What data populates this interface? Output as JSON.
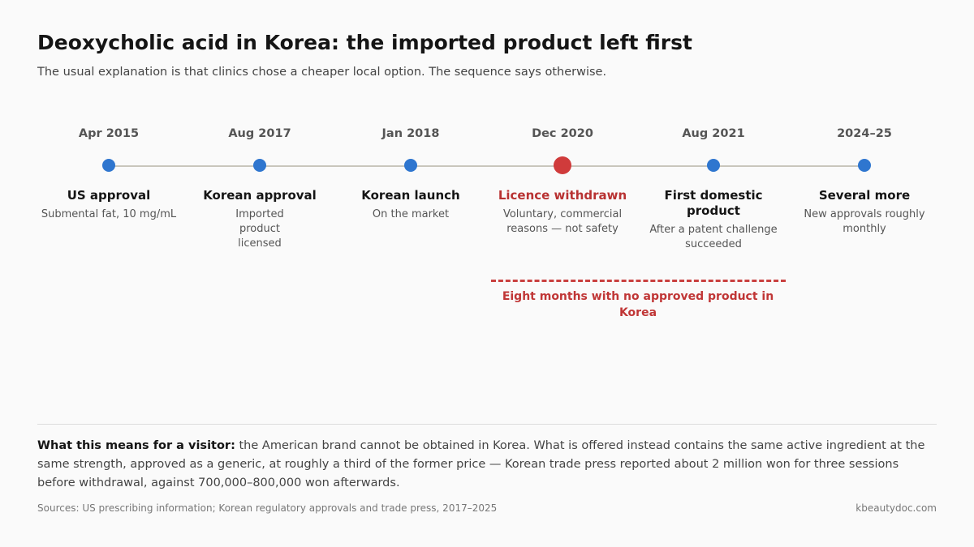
{
  "header": {
    "title": "Deoxycholic acid in Korea: the imported product left first",
    "subtitle": "The usual explanation is that clinics chose a cheaper local option. The sequence says otherwise."
  },
  "timeline": {
    "events": [
      {
        "date": "Apr 2015",
        "label": "US approval",
        "description": "Submental fat, 10 mg/mL",
        "highlight": false
      },
      {
        "date": "Aug 2017",
        "label": "Korean approval",
        "description": "Imported product licensed",
        "highlight": false
      },
      {
        "date": "Jan 2018",
        "label": "Korean launch",
        "description": "On the market",
        "highlight": false
      },
      {
        "date": "Dec 2020",
        "label": "Licence withdrawn",
        "description": "Voluntary, commercial reasons — not safety",
        "highlight": true
      },
      {
        "date": "Aug 2021",
        "label": "First domestic product",
        "description": "After a patent challenge succeeded",
        "highlight": false
      },
      {
        "date": "2024–25",
        "label": "Several more",
        "description": "New approvals roughly monthly",
        "highlight": false
      }
    ],
    "gap_annotation": "Eight months with no approved product in Korea"
  },
  "colors": {
    "dot": "#2f76cf",
    "highlight": "#d03b3b",
    "line": "#c9c6bc"
  },
  "footer": {
    "note_lead": "What this means for a visitor:",
    "note_body": " the American brand cannot be obtained in Korea. What is offered instead contains the same active ingredient at the same strength, approved as a generic, at roughly a third of the former price — Korean trade press reported about 2 million won for three sessions before withdrawal, against 700,000–800,000 won afterwards.",
    "sources": "Sources: US prescribing information; Korean regulatory approvals and trade press, 2017–2025",
    "site": "kbeautydoc.com"
  }
}
